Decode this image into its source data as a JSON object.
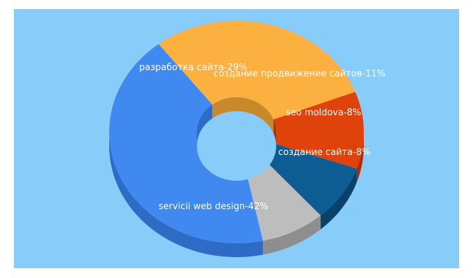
{
  "background_color": "#88ccf9",
  "chart_data": {
    "type": "pie",
    "variant": "3d-donut",
    "title": "",
    "slices": [
      {
        "label": "servicii web design",
        "value": 42,
        "color": "#4089f0",
        "side": "#2e6bc4",
        "text": "servicii web design-42%"
      },
      {
        "label": "разработка сайта",
        "value": 29,
        "color": "#fbb040",
        "side": "#c9882a",
        "text": "разработка сайта-29%"
      },
      {
        "label": "создание продвижение сайтов",
        "value": 11,
        "color": "#e0420c",
        "side": "#a83008",
        "text": "создание продвижение сайтов-11%"
      },
      {
        "label": "seo moldova",
        "value": 8,
        "color": "#0d5d94",
        "side": "#08426b",
        "text": "seo moldova-8%"
      },
      {
        "label": "создание сайта",
        "value": 8,
        "color": "#bdbdbd",
        "side": "#8e8e8e",
        "text": "создание сайта-8%"
      }
    ]
  }
}
